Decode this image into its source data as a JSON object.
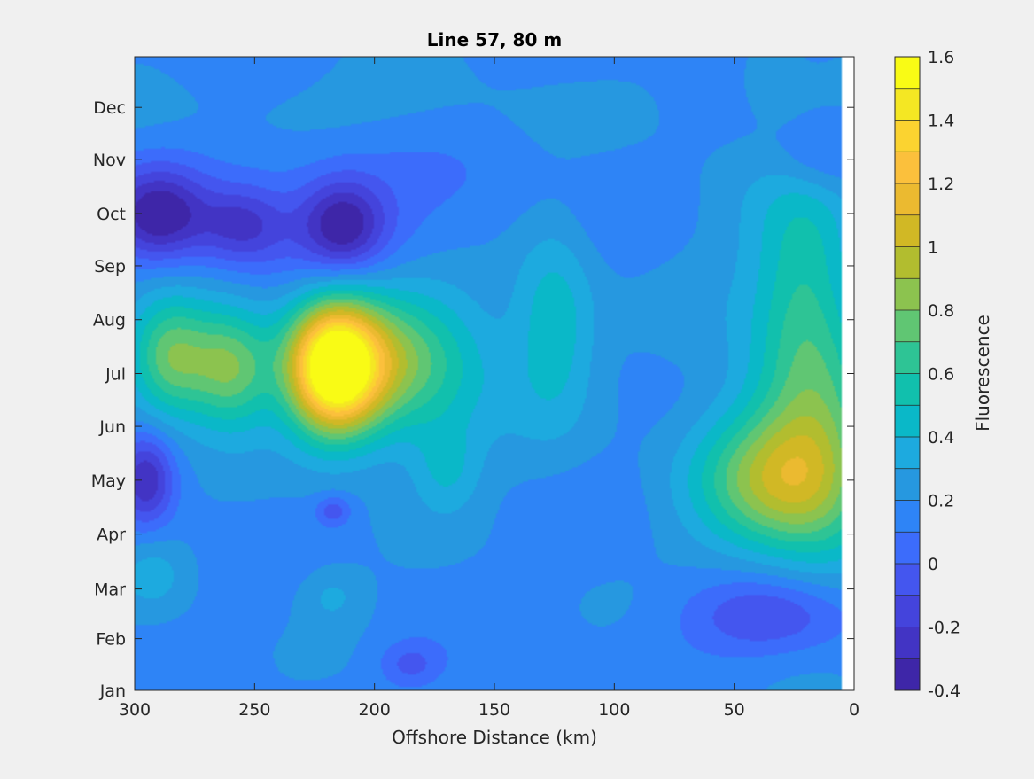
{
  "chart_data": {
    "type": "heatmap",
    "title": "Line 57, 80 m",
    "xlabel": "Offshore Distance (km)",
    "ylabel": "",
    "colorbar_label": "Fluorescence",
    "x_direction": "reversed",
    "xlim": [
      0,
      300
    ],
    "xticks": [
      300,
      250,
      200,
      150,
      100,
      50,
      0
    ],
    "ylim": [
      0,
      12
    ],
    "yticks": [
      {
        "value": 0,
        "label": "Jan"
      },
      {
        "value": 0.98,
        "label": "Feb"
      },
      {
        "value": 1.92,
        "label": "Mar"
      },
      {
        "value": 2.96,
        "label": "Apr"
      },
      {
        "value": 3.98,
        "label": "May"
      },
      {
        "value": 5.0,
        "label": "Jun"
      },
      {
        "value": 6.0,
        "label": "Jul"
      },
      {
        "value": 7.02,
        "label": "Aug"
      },
      {
        "value": 8.04,
        "label": "Sep"
      },
      {
        "value": 9.03,
        "label": "Oct"
      },
      {
        "value": 10.05,
        "label": "Nov"
      },
      {
        "value": 11.04,
        "label": "Dec"
      }
    ],
    "data_xmin": 5,
    "clim": [
      -0.4,
      1.6
    ],
    "colorbar_ticks": [
      1.6,
      1.4,
      1.2,
      1,
      0.8,
      0.6,
      0.4,
      0.2,
      0,
      -0.2,
      -0.4
    ],
    "colorbar_tick_labels": [
      "1.6",
      "1.4",
      "1.2",
      "1",
      "0.8",
      "0.6",
      "0.4",
      "0.2",
      "0",
      "-0.2",
      "-0.4"
    ],
    "levels": [
      -0.4,
      -0.3,
      -0.2,
      -0.1,
      0,
      0.1,
      0.2,
      0.3,
      0.4,
      0.5,
      0.6,
      0.7,
      0.8,
      0.9,
      1.0,
      1.1,
      1.2,
      1.3,
      1.4,
      1.5,
      1.6
    ],
    "colormap": [
      "#3e26a8",
      "#4234c4",
      "#4444dc",
      "#4456ef",
      "#3c6cfb",
      "#2e84f6",
      "#2698e0",
      "#1daadf",
      "#0ab8c8",
      "#11c0ad",
      "#2ec495",
      "#60c673",
      "#8cc34f",
      "#b2bd2f",
      "#d1b825",
      "#ebba30",
      "#fbc03c",
      "#fbd330",
      "#f4e723",
      "#f9fb15"
    ],
    "background_value": 0.17,
    "features": [
      {
        "x": 217,
        "y": 6.1,
        "sx": 13,
        "sy": 0.85,
        "amp": 1.3
      },
      {
        "x": 200,
        "y": 6.2,
        "sx": 25,
        "sy": 0.9,
        "amp": 0.5
      },
      {
        "x": 285,
        "y": 6.3,
        "sx": 12,
        "sy": 0.8,
        "amp": 0.6
      },
      {
        "x": 260,
        "y": 6.1,
        "sx": 12,
        "sy": 0.8,
        "amp": 0.6
      },
      {
        "x": 180,
        "y": 6.2,
        "sx": 30,
        "sy": 1.4,
        "amp": 0.2
      },
      {
        "x": 125,
        "y": 7.0,
        "sx": 12,
        "sy": 1.3,
        "amp": 0.3
      },
      {
        "x": 35,
        "y": 4.0,
        "sx": 22,
        "sy": 0.9,
        "amp": 0.55
      },
      {
        "x": 12,
        "y": 4.2,
        "sx": 18,
        "sy": 1.4,
        "amp": 0.4
      },
      {
        "x": 20,
        "y": 7.4,
        "sx": 15,
        "sy": 1.8,
        "amp": 0.4
      },
      {
        "x": 40,
        "y": 6.0,
        "sx": 25,
        "sy": 3.0,
        "amp": 0.1
      },
      {
        "x": 170,
        "y": 4.2,
        "sx": 10,
        "sy": 0.6,
        "amp": 0.2
      },
      {
        "x": 292,
        "y": 2.2,
        "sx": 10,
        "sy": 0.5,
        "amp": 0.15
      },
      {
        "x": 218,
        "y": 1.8,
        "sx": 10,
        "sy": 0.4,
        "amp": 0.15
      },
      {
        "x": 290,
        "y": 9.0,
        "sx": 14,
        "sy": 0.6,
        "amp": -0.5
      },
      {
        "x": 255,
        "y": 8.8,
        "sx": 12,
        "sy": 0.5,
        "amp": -0.3
      },
      {
        "x": 213,
        "y": 8.8,
        "sx": 12,
        "sy": 0.6,
        "amp": -0.45
      },
      {
        "x": 220,
        "y": 9.0,
        "sx": 55,
        "sy": 1.0,
        "amp": -0.15
      },
      {
        "x": 295,
        "y": 4.0,
        "sx": 8,
        "sy": 0.6,
        "amp": -0.45
      },
      {
        "x": 217,
        "y": 3.4,
        "sx": 5,
        "sy": 0.2,
        "amp": -0.25
      },
      {
        "x": 35,
        "y": 1.4,
        "sx": 25,
        "sy": 0.55,
        "amp": -0.3
      },
      {
        "x": 15,
        "y": 10.1,
        "sx": 14,
        "sy": 0.5,
        "amp": -0.2
      },
      {
        "x": 185,
        "y": 0.5,
        "sx": 9,
        "sy": 0.3,
        "amp": -0.2
      },
      {
        "x": 35,
        "y": 11.5,
        "sx": 8,
        "sy": 0.4,
        "amp": 0.1
      },
      {
        "x": 220,
        "y": 11.0,
        "sx": 80,
        "sy": 0.6,
        "amp": 0.07
      }
    ]
  }
}
